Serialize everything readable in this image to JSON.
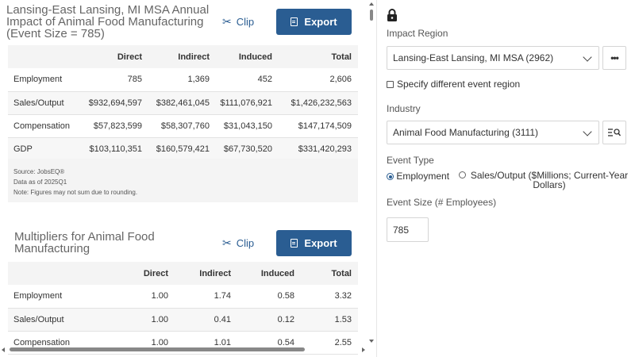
{
  "impact_card": {
    "title": "Lansing-East Lansing, MI MSA Annual Impact of Animal Food Manufacturing (Event Size = 785)",
    "clip_label": "Clip",
    "export_label": "Export",
    "columns": [
      "",
      "Direct",
      "Indirect",
      "Induced",
      "Total"
    ],
    "rows": [
      {
        "label": "Employment",
        "direct": "785",
        "indirect": "1,369",
        "induced": "452",
        "total": "2,606"
      },
      {
        "label": "Sales/Output",
        "direct": "$932,694,597",
        "indirect": "$382,461,045",
        "induced": "$111,076,921",
        "total": "$1,426,232,563"
      },
      {
        "label": "Compensation",
        "direct": "$57,823,599",
        "indirect": "$58,307,760",
        "induced": "$31,043,150",
        "total": "$147,174,509"
      },
      {
        "label": "GDP",
        "direct": "$103,110,351",
        "indirect": "$160,579,421",
        "induced": "$67,730,520",
        "total": "$331,420,293"
      }
    ],
    "notes": {
      "source": "Source: JobsEQ®",
      "data_as_of": "Data as of 2025Q1",
      "note": "Note: Figures may not sum due to rounding."
    }
  },
  "multipliers_card": {
    "title": "Multipliers for Animal Food Manufacturing",
    "clip_label": "Clip",
    "export_label": "Export",
    "columns": [
      "",
      "Direct",
      "Indirect",
      "Induced",
      "Total"
    ],
    "rows": [
      {
        "label": "Employment",
        "direct": "1.00",
        "indirect": "1.74",
        "induced": "0.58",
        "total": "3.32"
      },
      {
        "label": "Sales/Output",
        "direct": "1.00",
        "indirect": "0.41",
        "induced": "0.12",
        "total": "1.53"
      },
      {
        "label": "Compensation",
        "direct": "1.00",
        "indirect": "1.01",
        "induced": "0.54",
        "total": "2.55"
      }
    ]
  },
  "settings": {
    "impact_region_label": "Impact Region",
    "impact_region_value": "Lansing-East Lansing, MI MSA (2962)",
    "more_label": "•••",
    "specify_region_label": "Specify different event region",
    "industry_label": "Industry",
    "industry_value": "Animal Food Manufacturing (3111)",
    "event_type_label": "Event Type",
    "event_type_options": [
      "Employment",
      "Sales/Output ($Millions; Current-Year Dollars)"
    ],
    "event_type_selected": "Employment",
    "event_size_label": "Event Size (# Employees)",
    "event_size_value": "785"
  },
  "colors": {
    "accent": "#2a5d92",
    "header_bg": "#f4f4f4"
  }
}
